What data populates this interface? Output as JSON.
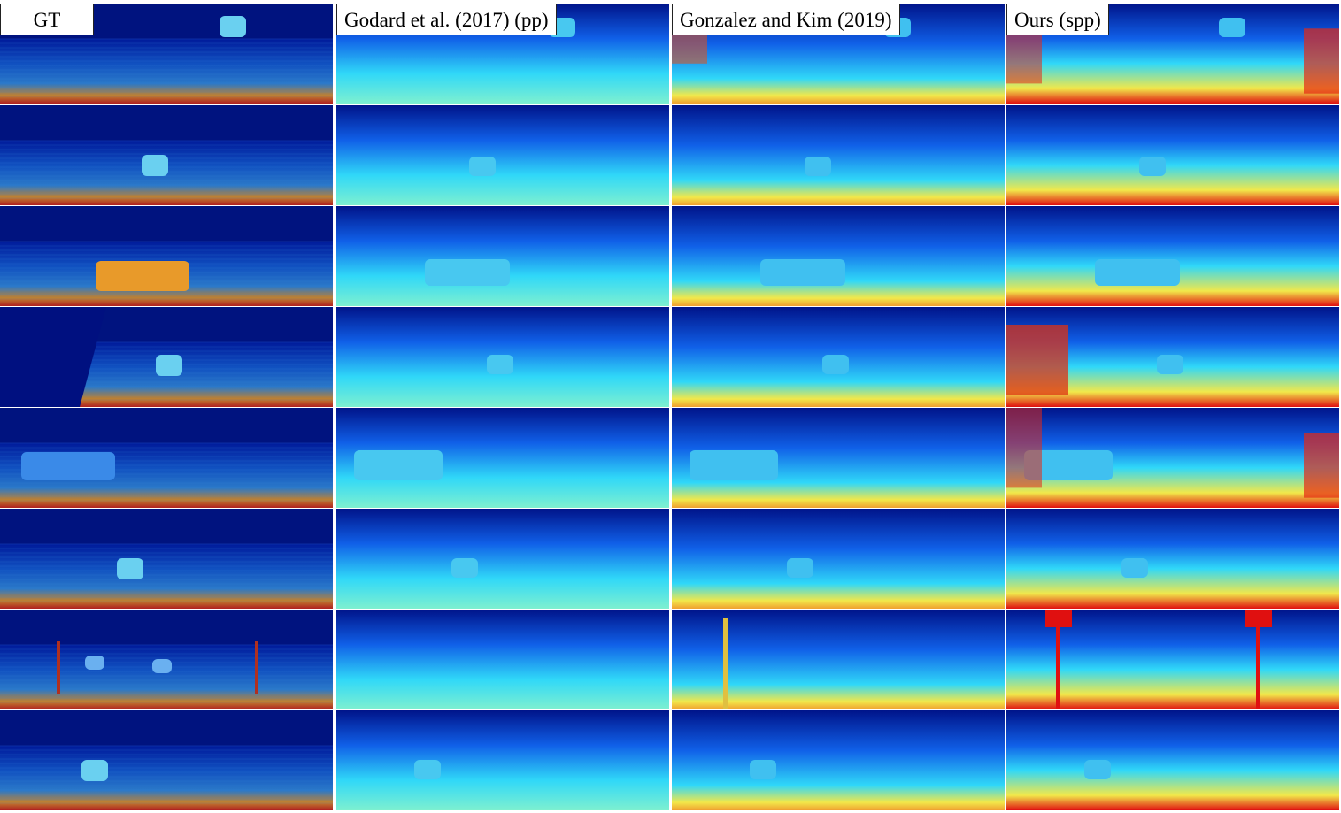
{
  "columns": [
    {
      "id": "gt",
      "label": "GT",
      "style": "sparse"
    },
    {
      "id": "godard",
      "label": "Godard et al. (2017) (pp)",
      "style": "smooth"
    },
    {
      "id": "gonzalez",
      "label": "Gonzalez and Kim (2019)",
      "style": "sharp"
    },
    {
      "id": "ours",
      "label": "Ours (spp)",
      "style": "warm"
    }
  ],
  "rows": [
    {
      "id": "row-1",
      "gt_object": "car"
    },
    {
      "id": "row-2",
      "gt_object": "car"
    },
    {
      "id": "row-3",
      "gt_object": "car-orange"
    },
    {
      "id": "row-4",
      "gt_object": "car"
    },
    {
      "id": "row-5",
      "gt_object": "car-left"
    },
    {
      "id": "row-6",
      "gt_object": "car"
    },
    {
      "id": "row-7",
      "gt_object": "cars-signs"
    },
    {
      "id": "row-8",
      "gt_object": "car"
    }
  ],
  "colors": {
    "near": "#e01010",
    "mid": "#f2e84a",
    "cyan": "#30d8f8",
    "blue": "#1060e8",
    "far": "#00148a"
  }
}
